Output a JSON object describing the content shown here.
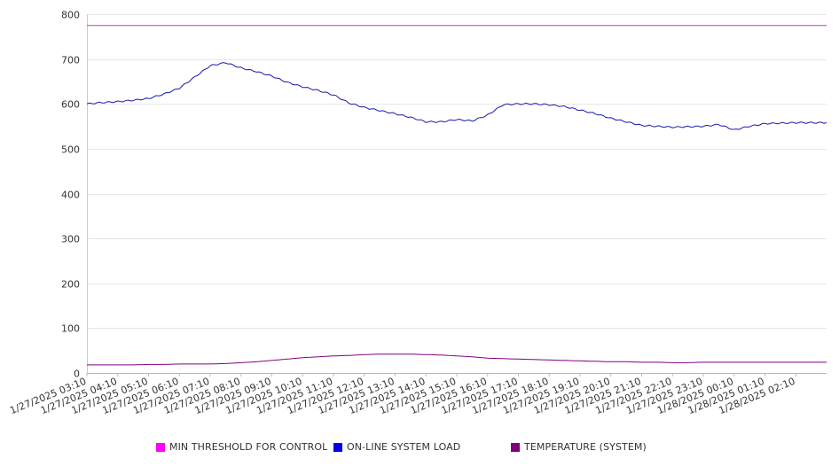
{
  "chart_data": {
    "type": "line",
    "title": "",
    "xlabel": "",
    "ylabel": "",
    "ylim": [
      0,
      800
    ],
    "y_ticks": [
      0,
      100,
      200,
      300,
      400,
      500,
      600,
      700,
      800
    ],
    "grid": true,
    "legend_position": "bottom",
    "x_tick_labels": [
      "1/27/2025 03:10",
      "1/27/2025 04:10",
      "1/27/2025 05:10",
      "1/27/2025 06:10",
      "1/27/2025 07:10",
      "1/27/2025 08:10",
      "1/27/2025 09:10",
      "1/27/2025 10:10",
      "1/27/2025 11:10",
      "1/27/2025 12:10",
      "1/27/2025 13:10",
      "1/27/2025 14:10",
      "1/27/2025 15:10",
      "1/27/2025 16:10",
      "1/27/2025 17:10",
      "1/27/2025 18:10",
      "1/27/2025 19:10",
      "1/27/2025 20:10",
      "1/27/2025 21:10",
      "1/27/2025 22:10",
      "1/27/2025 23:10",
      "1/28/2025 00:10",
      "1/28/2025 01:10",
      "1/28/2025 02:10"
    ],
    "x": [
      "1/27/2025 03:10",
      "1/27/2025 03:40",
      "1/27/2025 04:10",
      "1/27/2025 04:40",
      "1/27/2025 05:10",
      "1/27/2025 05:40",
      "1/27/2025 06:10",
      "1/27/2025 06:40",
      "1/27/2025 07:10",
      "1/27/2025 07:40",
      "1/27/2025 08:10",
      "1/27/2025 08:40",
      "1/27/2025 09:10",
      "1/27/2025 09:40",
      "1/27/2025 10:10",
      "1/27/2025 10:40",
      "1/27/2025 11:10",
      "1/27/2025 11:40",
      "1/27/2025 12:10",
      "1/27/2025 12:40",
      "1/27/2025 13:10",
      "1/27/2025 13:40",
      "1/27/2025 14:10",
      "1/27/2025 14:40",
      "1/27/2025 15:10",
      "1/27/2025 15:40",
      "1/27/2025 16:10",
      "1/27/2025 16:40",
      "1/27/2025 17:10",
      "1/27/2025 17:40",
      "1/27/2025 18:10",
      "1/27/2025 18:40",
      "1/27/2025 19:10",
      "1/27/2025 19:40",
      "1/27/2025 20:10",
      "1/27/2025 20:40",
      "1/27/2025 21:10",
      "1/27/2025 21:40",
      "1/27/2025 22:10",
      "1/27/2025 22:40",
      "1/27/2025 23:10",
      "1/27/2025 23:40",
      "1/28/2025 00:10",
      "1/28/2025 00:40",
      "1/28/2025 01:10",
      "1/28/2025 01:40",
      "1/28/2025 02:10",
      "1/28/2025 02:40",
      "1/28/2025 03:00"
    ],
    "series": [
      {
        "name": "MIN THRESHOLD FOR CONTROL",
        "color": "#cc33cc",
        "values": [
          775,
          775,
          775,
          775,
          775,
          775,
          775,
          775,
          775,
          775,
          775,
          775,
          775,
          775,
          775,
          775,
          775,
          775,
          775,
          775,
          775,
          775,
          775,
          775,
          775,
          775,
          775,
          775,
          775,
          775,
          775,
          775,
          775,
          775,
          775,
          775,
          775,
          775,
          775,
          775,
          775,
          775,
          775,
          775,
          775,
          775,
          775,
          775,
          775
        ]
      },
      {
        "name": "ON-LINE SYSTEM LOAD",
        "color": "#1a1aaa",
        "values": [
          600,
          603,
          605,
          608,
          612,
          622,
          635,
          660,
          685,
          692,
          680,
          672,
          662,
          648,
          638,
          630,
          620,
          602,
          592,
          585,
          578,
          570,
          560,
          560,
          565,
          562,
          575,
          598,
          600,
          600,
          598,
          594,
          586,
          578,
          568,
          560,
          552,
          550,
          548,
          549,
          550,
          554,
          542,
          550,
          556,
          557,
          558,
          558,
          558
        ]
      },
      {
        "name": "TEMPERATURE (SYSTEM)",
        "color": "#800080",
        "values": [
          18,
          18,
          18,
          18,
          19,
          19,
          20,
          20,
          20,
          21,
          23,
          25,
          28,
          31,
          34,
          36,
          38,
          39,
          41,
          42,
          42,
          42,
          41,
          40,
          38,
          36,
          33,
          32,
          31,
          30,
          29,
          28,
          27,
          26,
          25,
          25,
          24,
          24,
          23,
          23,
          24,
          24,
          24,
          24,
          24,
          24,
          24,
          24,
          24
        ]
      }
    ]
  }
}
